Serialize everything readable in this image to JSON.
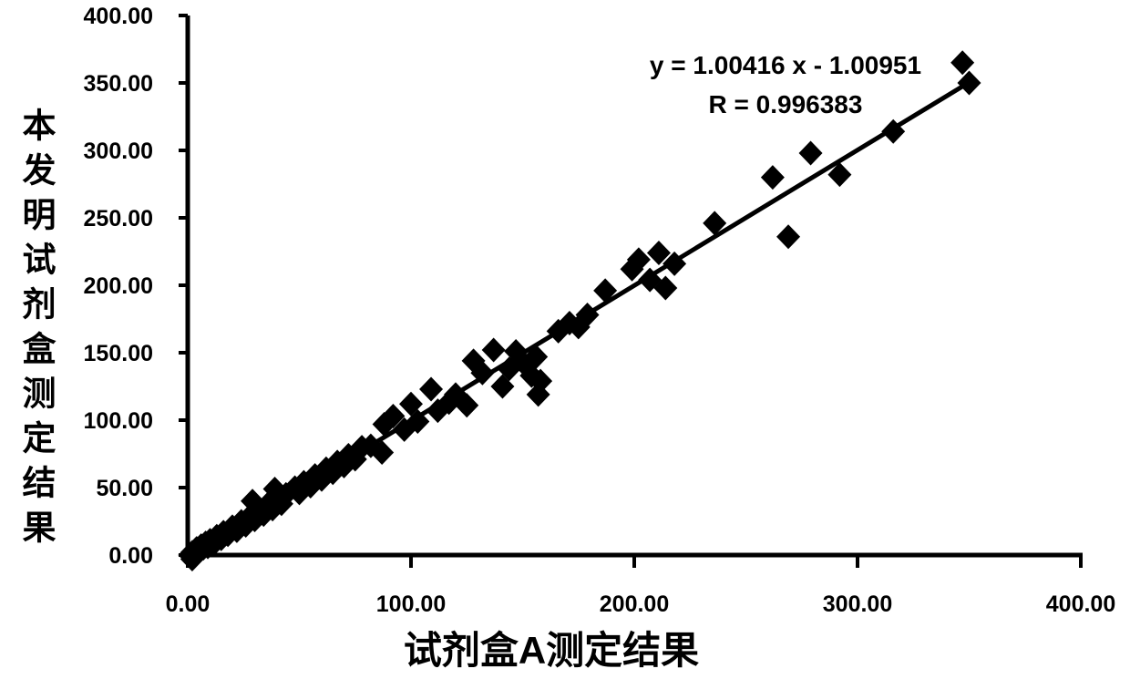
{
  "colors": {
    "background": "#ffffff",
    "ink": "#000000"
  },
  "chart_data": {
    "type": "scatter",
    "title": "",
    "xlabel": "试剂盒A测定结果",
    "ylabel": "本发明试剂盒测定结果",
    "xlim": [
      0,
      400
    ],
    "ylim": [
      0,
      400
    ],
    "grid": false,
    "legend": "none",
    "x_tick_values": [
      0,
      100,
      200,
      300,
      400
    ],
    "x_tick_labels": [
      "0.00",
      "100.00",
      "200.00",
      "300.00",
      "400.00"
    ],
    "y_tick_values": [
      0,
      50,
      100,
      150,
      200,
      250,
      300,
      350,
      400
    ],
    "y_tick_labels": [
      "0.00",
      "50.00",
      "100.00",
      "150.00",
      "200.00",
      "250.00",
      "300.00",
      "350.00",
      "400.00"
    ],
    "annotation": {
      "line1": "y = 1.00416 x - 1.00951",
      "line2": "R = 0.996383"
    },
    "regression": {
      "slope": 1.00416,
      "intercept": -1.00951,
      "r": 0.996383,
      "x_start": 2,
      "x_end": 352
    },
    "marker": {
      "shape": "diamond",
      "color": "#000000"
    },
    "points": [
      [
        1,
        0
      ],
      [
        2,
        -3
      ],
      [
        2,
        2
      ],
      [
        3,
        1
      ],
      [
        4,
        5
      ],
      [
        5,
        3
      ],
      [
        6,
        7
      ],
      [
        7,
        5
      ],
      [
        8,
        9
      ],
      [
        9,
        6
      ],
      [
        10,
        11
      ],
      [
        12,
        9
      ],
      [
        13,
        14
      ],
      [
        15,
        12
      ],
      [
        16,
        17
      ],
      [
        18,
        15
      ],
      [
        20,
        21
      ],
      [
        22,
        18
      ],
      [
        24,
        25
      ],
      [
        26,
        22
      ],
      [
        28,
        29
      ],
      [
        30,
        26
      ],
      [
        32,
        33
      ],
      [
        34,
        30
      ],
      [
        36,
        38
      ],
      [
        38,
        34
      ],
      [
        40,
        42
      ],
      [
        42,
        38
      ],
      [
        44,
        45
      ],
      [
        29,
        40
      ],
      [
        39,
        49
      ],
      [
        48,
        50
      ],
      [
        50,
        46
      ],
      [
        52,
        54
      ],
      [
        55,
        51
      ],
      [
        57,
        59
      ],
      [
        60,
        56
      ],
      [
        62,
        64
      ],
      [
        65,
        61
      ],
      [
        67,
        69
      ],
      [
        70,
        66
      ],
      [
        72,
        74
      ],
      [
        75,
        71
      ],
      [
        78,
        80
      ],
      [
        82,
        81
      ],
      [
        87,
        76
      ],
      [
        88,
        97
      ],
      [
        92,
        103
      ],
      [
        97,
        93
      ],
      [
        100,
        112
      ],
      [
        103,
        99
      ],
      [
        109,
        123
      ],
      [
        112,
        107
      ],
      [
        117,
        113
      ],
      [
        120,
        119
      ],
      [
        125,
        111
      ],
      [
        128,
        144
      ],
      [
        132,
        135
      ],
      [
        137,
        152
      ],
      [
        141,
        125
      ],
      [
        144,
        138
      ],
      [
        147,
        151
      ],
      [
        150,
        143
      ],
      [
        154,
        133
      ],
      [
        156,
        147
      ],
      [
        158,
        129
      ],
      [
        157,
        119
      ],
      [
        166,
        166
      ],
      [
        171,
        172
      ],
      [
        175,
        169
      ],
      [
        179,
        178
      ],
      [
        187,
        196
      ],
      [
        199,
        212
      ],
      [
        202,
        219
      ],
      [
        207,
        204
      ],
      [
        211,
        224
      ],
      [
        214,
        198
      ],
      [
        218,
        216
      ],
      [
        236,
        246
      ],
      [
        262,
        280
      ],
      [
        269,
        236
      ],
      [
        279,
        298
      ],
      [
        292,
        282
      ],
      [
        316,
        314
      ],
      [
        347,
        365
      ],
      [
        350,
        350
      ]
    ]
  }
}
